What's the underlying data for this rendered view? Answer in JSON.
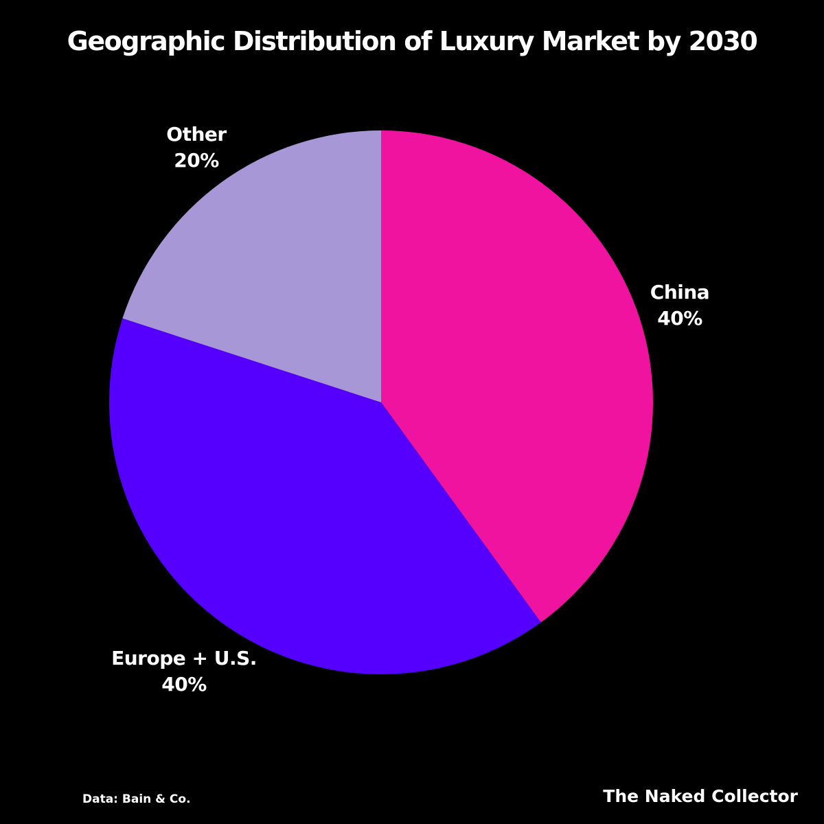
{
  "chart_data": {
    "type": "pie",
    "title": "Geographic Distribution of Luxury Market by 2030",
    "categories": [
      "China",
      "Europe + U.S.",
      "Other"
    ],
    "values": [
      40,
      40,
      20
    ],
    "value_labels": [
      "40%",
      "40%",
      "20%"
    ],
    "colors": [
      "#F0139F",
      "#5500FF",
      "#A897D6"
    ],
    "start_angle": "12 o'clock",
    "direction": "clockwise",
    "legend": "none"
  },
  "footer": {
    "source": "Data: Bain & Co.",
    "brand": "The Naked Collector"
  }
}
